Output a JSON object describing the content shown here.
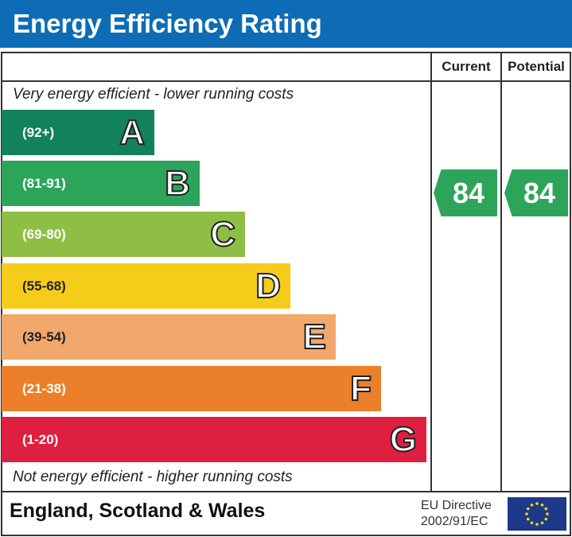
{
  "title": "Energy Efficiency Rating",
  "columns": {
    "current": "Current",
    "potential": "Potential"
  },
  "top_note": "Very energy efficient - lower running costs",
  "bottom_note": "Not energy efficient - higher running costs",
  "bands": [
    {
      "range": "(92+)",
      "letter": "A",
      "color": "#11825a"
    },
    {
      "range": "(81-91)",
      "letter": "B",
      "color": "#2ca55a"
    },
    {
      "range": "(69-80)",
      "letter": "C",
      "color": "#8fbe44"
    },
    {
      "range": "(55-68)",
      "letter": "D",
      "color": "#f5cc1a"
    },
    {
      "range": "(39-54)",
      "letter": "E",
      "color": "#f2a86c"
    },
    {
      "range": "(21-38)",
      "letter": "F",
      "color": "#ec7f2a"
    },
    {
      "range": "(1-20)",
      "letter": "G",
      "color": "#df1f3f"
    }
  ],
  "current": {
    "value": "84",
    "band": "B",
    "color": "#2ca55a"
  },
  "potential": {
    "value": "84",
    "band": "B",
    "color": "#2ca55a"
  },
  "footer": {
    "region": "England, Scotland & Wales",
    "directive_line1": "EU Directive",
    "directive_line2": "2002/91/EC"
  }
}
